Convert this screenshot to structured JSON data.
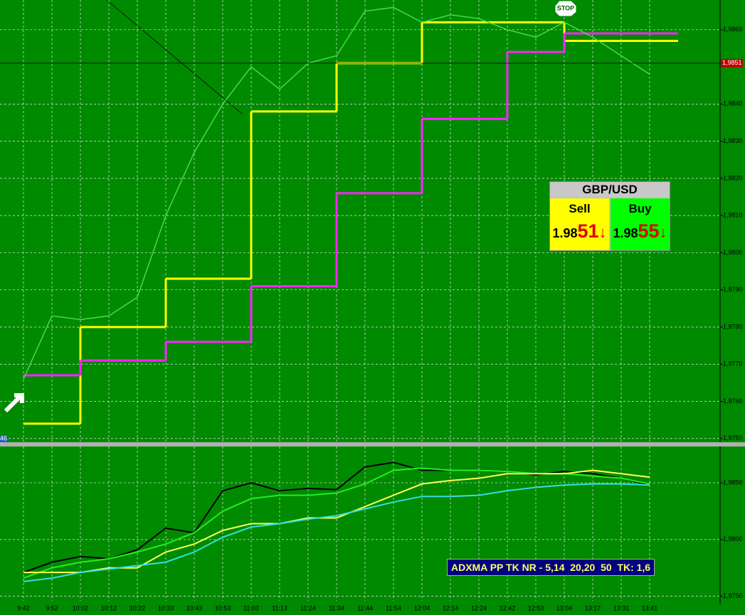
{
  "chart_data": [
    {
      "type": "line",
      "ylim": [
        1.9749,
        1.9868
      ],
      "yticks": [
        {
          "value": 1.975,
          "label": "1,9750"
        },
        {
          "value": 1.976,
          "label": "1,9760"
        },
        {
          "value": 1.977,
          "label": "1,9770"
        },
        {
          "value": 1.978,
          "label": "1,9780"
        },
        {
          "value": 1.979,
          "label": "1,9790"
        },
        {
          "value": 1.98,
          "label": "1,9800"
        },
        {
          "value": 1.981,
          "label": "1,9810"
        },
        {
          "value": 1.982,
          "label": "1,9820"
        },
        {
          "value": 1.983,
          "label": "1,9830"
        },
        {
          "value": 1.984,
          "label": "1,9840"
        },
        {
          "value": 1.986,
          "label": "1,9860"
        }
      ],
      "grid": true,
      "current_price": {
        "value": 1.9851,
        "label": "1,9851"
      },
      "annotation": "STOP",
      "edge_label": "46",
      "series": [
        {
          "color": "#ffff00",
          "step": true,
          "values": [
            1.9754,
            1.9754,
            1.978,
            1.978,
            1.978,
            1.9793,
            1.9793,
            1.9793,
            1.9838,
            1.9838,
            1.9838,
            1.9851,
            1.9851,
            1.9851,
            1.9862,
            1.9862,
            1.9862,
            1.9862,
            1.9862,
            1.9857,
            1.9857,
            1.9857,
            1.9857
          ]
        },
        {
          "color": "#ff22ff",
          "step": true,
          "values": [
            1.9767,
            1.9767,
            1.9771,
            1.9771,
            1.9771,
            1.9776,
            1.9776,
            1.9776,
            1.9791,
            1.9791,
            1.9791,
            1.9816,
            1.9816,
            1.9816,
            1.9836,
            1.9836,
            1.9836,
            1.9854,
            1.9854,
            1.9859,
            1.9859,
            1.9859,
            1.9859
          ]
        },
        {
          "color": "#44dd44",
          "step": false,
          "values": [
            1.9766,
            1.9783,
            1.9782,
            1.9783,
            1.9788,
            1.981,
            1.9827,
            1.984,
            1.985,
            1.9844,
            1.9851,
            1.9853,
            1.9865,
            1.9866,
            1.9862,
            1.9864,
            1.9863,
            1.986,
            1.9858,
            1.9862,
            1.9858,
            1.9853,
            1.9848
          ]
        }
      ],
      "quote_panel": {
        "symbol": "GBP/USD",
        "sell": {
          "label": "Sell",
          "big_figure": "1.98",
          "pips": "51"
        },
        "buy": {
          "label": "Buy",
          "big_figure": "1.98",
          "pips": "55"
        }
      }
    },
    {
      "type": "line",
      "title": "ADXMA PP TK NR - 5,14  20,20  50  TK: 1,6",
      "categories": [
        "9:42",
        "9:52",
        "10:02",
        "10:12",
        "10:22",
        "10:33",
        "10:43",
        "10:53",
        "11:03",
        "11:13",
        "11:24",
        "11:34",
        "11:44",
        "11:54",
        "12:04",
        "12:14",
        "12:24",
        "12:42",
        "12:53",
        "13:04",
        "13:17",
        "13:31",
        "13:41"
      ],
      "ylim": [
        1.9746,
        1.9882
      ],
      "yticks": [
        {
          "value": 1.975,
          "label": "1,9750"
        },
        {
          "value": 1.98,
          "label": "1,9800"
        },
        {
          "value": 1.985,
          "label": "1,9850"
        }
      ],
      "grid": true,
      "series": [
        {
          "color": "#000000",
          "values": [
            1.9771,
            1.978,
            1.9785,
            1.9783,
            1.9791,
            1.981,
            1.9806,
            1.9843,
            1.985,
            1.9843,
            1.9845,
            1.9844,
            1.9864,
            1.9868,
            1.9861,
            1.9861,
            1.9861,
            1.986,
            1.9857,
            1.986,
            1.9858,
            1.9854,
            1.9848
          ]
        },
        {
          "color": "#22ee22",
          "values": [
            1.9766,
            1.9775,
            1.978,
            1.9783,
            1.9789,
            1.9796,
            1.9806,
            1.9825,
            1.9836,
            1.9839,
            1.9839,
            1.9841,
            1.9849,
            1.9861,
            1.9863,
            1.9861,
            1.9861,
            1.986,
            1.9858,
            1.9858,
            1.9856,
            1.9854,
            1.9849
          ]
        },
        {
          "color": "#ffff55",
          "values": [
            1.9771,
            1.9771,
            1.9771,
            1.9775,
            1.9775,
            1.9789,
            1.9796,
            1.9808,
            1.9814,
            1.9814,
            1.9819,
            1.9819,
            1.9829,
            1.9839,
            1.9849,
            1.9852,
            1.9854,
            1.9858,
            1.9858,
            1.9858,
            1.9861,
            1.9858,
            1.9855
          ]
        },
        {
          "color": "#33e0e0",
          "values": [
            1.9763,
            1.9766,
            1.9771,
            1.9774,
            1.9777,
            1.978,
            1.9789,
            1.9802,
            1.9811,
            1.9814,
            1.9818,
            1.9821,
            1.9827,
            1.9833,
            1.9838,
            1.9838,
            1.9839,
            1.9843,
            1.9846,
            1.9848,
            1.9849,
            1.9849,
            1.9848
          ]
        }
      ]
    }
  ]
}
